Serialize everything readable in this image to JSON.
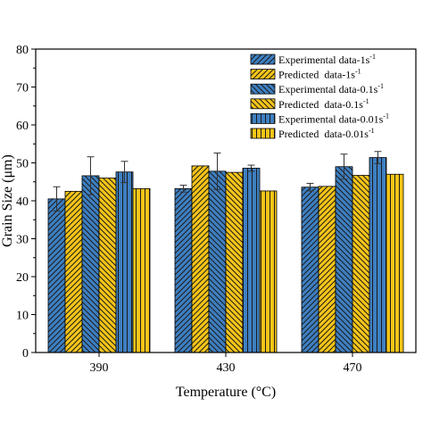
{
  "chart_data": {
    "type": "bar",
    "xlabel": "Temperature (°C)",
    "ylabel": "Grain Size (μm)",
    "ylim": [
      0,
      80
    ],
    "yticks": [
      0,
      10,
      20,
      30,
      40,
      50,
      60,
      70,
      80
    ],
    "categories": [
      "390",
      "430",
      "470"
    ],
    "legend_position": "top-right",
    "grid": false,
    "series": [
      {
        "name": "Experimental data-1s",
        "name_sup": "-1",
        "color": "#3e7fc1",
        "hatch": "back",
        "values": [
          40.5,
          43.2,
          43.6
        ],
        "errors": [
          3.2,
          0.9,
          1.0
        ]
      },
      {
        "name": "Predicted  data-1s",
        "name_sup": "-1",
        "color": "#f5c518",
        "hatch": "back",
        "values": [
          42.5,
          49.2,
          43.8
        ],
        "errors": [
          null,
          null,
          null
        ]
      },
      {
        "name": "Experimental data-0.1s",
        "name_sup": "-1",
        "color": "#3e7fc1",
        "hatch": "fwd",
        "values": [
          46.6,
          47.8,
          49.0
        ],
        "errors": [
          5.0,
          4.8,
          3.3
        ]
      },
      {
        "name": "Predicted  data-0.1s",
        "name_sup": "-1",
        "color": "#f5c518",
        "hatch": "fwd",
        "values": [
          46.0,
          47.5,
          46.7
        ],
        "errors": [
          null,
          null,
          null
        ]
      },
      {
        "name": "Experimental data-0.01s",
        "name_sup": "-1",
        "color": "#3e7fc1",
        "hatch": "vert",
        "values": [
          47.6,
          48.6,
          51.4
        ],
        "errors": [
          2.8,
          0.8,
          1.6
        ]
      },
      {
        "name": "Predicted  data-0.01s",
        "name_sup": "-1",
        "color": "#f5c518",
        "hatch": "vert",
        "values": [
          43.2,
          42.6,
          47.0
        ],
        "errors": [
          null,
          null,
          null
        ]
      }
    ]
  }
}
